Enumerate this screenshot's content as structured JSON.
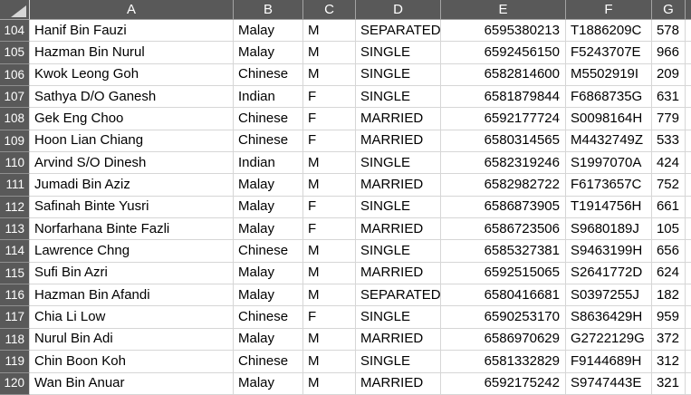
{
  "sheet": {
    "col_headers": [
      "A",
      "B",
      "C",
      "D",
      "E",
      "F",
      "G"
    ],
    "corner_icon": "select-all-triangle",
    "rows": [
      {
        "num": "104",
        "cells": [
          "Hanif Bin Fauzi",
          "Malay",
          "M",
          "SEPARATED",
          "6595380213",
          "T1886209C",
          "578"
        ]
      },
      {
        "num": "105",
        "cells": [
          "Hazman Bin Nurul",
          "Malay",
          "M",
          "SINGLE",
          "6592456150",
          "F5243707E",
          "966"
        ]
      },
      {
        "num": "106",
        "cells": [
          "Kwok Leong Goh",
          "Chinese",
          "M",
          "SINGLE",
          "6582814600",
          "M5502919I",
          "209"
        ]
      },
      {
        "num": "107",
        "cells": [
          "Sathya D/O Ganesh",
          "Indian",
          "F",
          "SINGLE",
          "6581879844",
          "F6868735G",
          "631"
        ]
      },
      {
        "num": "108",
        "cells": [
          "Gek Eng Choo",
          "Chinese",
          "F",
          "MARRIED",
          "6592177724",
          "S0098164H",
          "779"
        ]
      },
      {
        "num": "109",
        "cells": [
          "Hoon Lian Chiang",
          "Chinese",
          "F",
          "MARRIED",
          "6580314565",
          "M4432749Z",
          "533"
        ]
      },
      {
        "num": "110",
        "cells": [
          "Arvind S/O Dinesh",
          "Indian",
          "M",
          "SINGLE",
          "6582319246",
          "S1997070A",
          "424"
        ]
      },
      {
        "num": "111",
        "cells": [
          "Jumadi Bin Aziz",
          "Malay",
          "M",
          "MARRIED",
          "6582982722",
          "F6173657C",
          "752"
        ]
      },
      {
        "num": "112",
        "cells": [
          "Safinah Binte Yusri",
          "Malay",
          "F",
          "SINGLE",
          "6586873905",
          "T1914756H",
          "661"
        ]
      },
      {
        "num": "113",
        "cells": [
          "Norfarhana Binte Fazli",
          "Malay",
          "F",
          "MARRIED",
          "6586723506",
          "S9680189J",
          "105"
        ]
      },
      {
        "num": "114",
        "cells": [
          "Lawrence Chng",
          "Chinese",
          "M",
          "SINGLE",
          "6585327381",
          "S9463199H",
          "656"
        ]
      },
      {
        "num": "115",
        "cells": [
          "Sufi Bin Azri",
          "Malay",
          "M",
          "MARRIED",
          "6592515065",
          "S2641772D",
          "624"
        ]
      },
      {
        "num": "116",
        "cells": [
          "Hazman Bin Afandi",
          "Malay",
          "M",
          "SEPARATED",
          "6580416681",
          "S0397255J",
          "182"
        ]
      },
      {
        "num": "117",
        "cells": [
          "Chia Li Low",
          "Chinese",
          "F",
          "SINGLE",
          "6590253170",
          "S8636429H",
          "959"
        ]
      },
      {
        "num": "118",
        "cells": [
          "Nurul Bin Adi",
          "Malay",
          "M",
          "MARRIED",
          "6586970629",
          "G2722129G",
          "372"
        ]
      },
      {
        "num": "119",
        "cells": [
          "Chin Boon Koh",
          "Chinese",
          "M",
          "SINGLE",
          "6581332829",
          "F9144689H",
          "312"
        ]
      },
      {
        "num": "120",
        "cells": [
          "Wan Bin Anuar",
          "Malay",
          "M",
          "MARRIED",
          "6592175242",
          "S9747443E",
          "321"
        ]
      }
    ]
  },
  "colors": {
    "header_bg": "#595959",
    "header_text": "#ffffff",
    "gridline": "#d6d6d6",
    "cell_text": "#000000",
    "triangle": "#d6d6d6"
  }
}
